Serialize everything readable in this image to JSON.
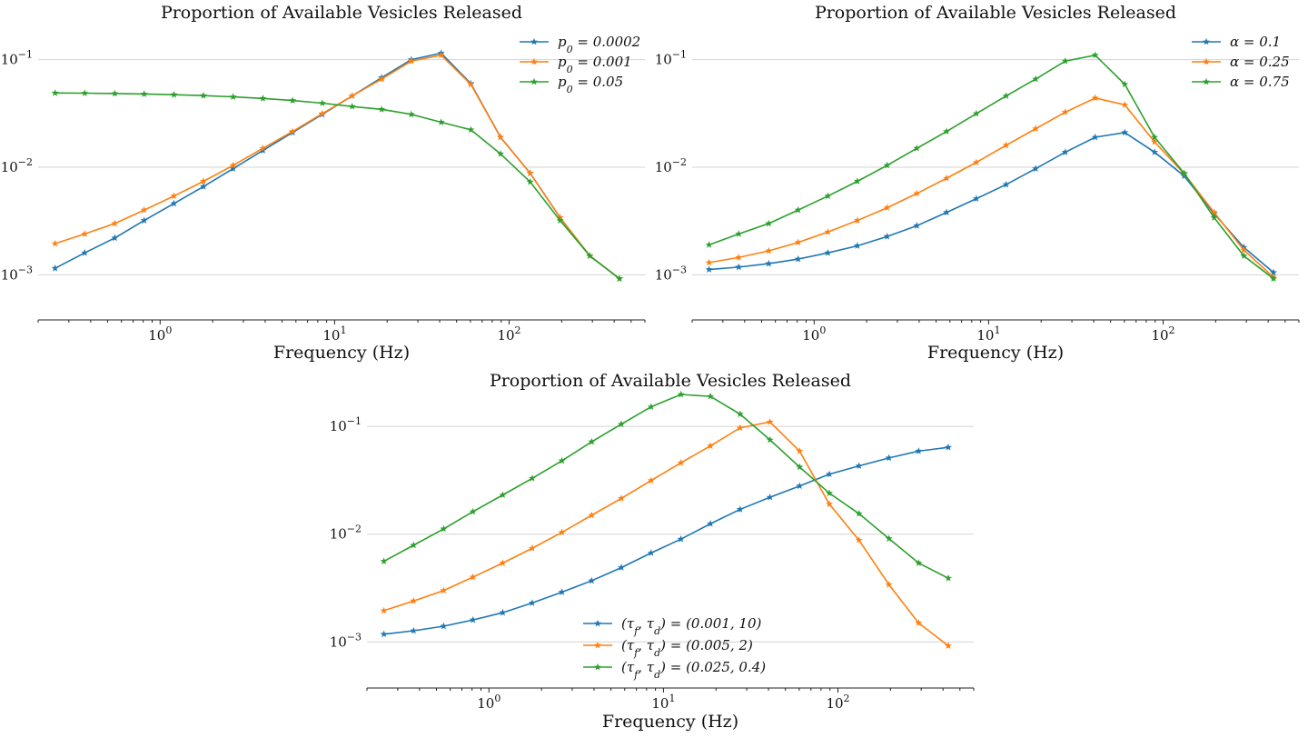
{
  "chart_data": [
    {
      "type": "line",
      "title": "Proportion of Available Vesicles Released",
      "xlabel": "Frequency (Hz)",
      "ylabel": "",
      "xscale": "log",
      "yscale": "log",
      "xlim": [
        0.2,
        600
      ],
      "ylim": [
        0.0005,
        0.2
      ],
      "grid": "y-major",
      "legend": "top-right",
      "x": [
        0.25,
        0.37,
        0.55,
        0.81,
        1.2,
        1.77,
        2.62,
        3.88,
        5.74,
        8.5,
        12.6,
        18.6,
        27.5,
        40.8,
        60.3,
        89.3,
        132,
        196,
        290,
        429
      ],
      "series": [
        {
          "name": "p_0 = 0.0002",
          "color": "#1f77b4",
          "values": [
            0.00115,
            0.0016,
            0.0022,
            0.0032,
            0.0046,
            0.0066,
            0.0097,
            0.0143,
            0.021,
            0.031,
            0.046,
            0.068,
            0.1,
            0.115,
            0.06,
            0.019,
            0.0088,
            0.0034,
            0.0015,
            0.00092
          ]
        },
        {
          "name": "p_0 = 0.001",
          "color": "#ff7f0e",
          "values": [
            0.00195,
            0.0024,
            0.003,
            0.004,
            0.0054,
            0.0074,
            0.0104,
            0.015,
            0.0215,
            0.0315,
            0.046,
            0.066,
            0.097,
            0.11,
            0.059,
            0.019,
            0.0088,
            0.0034,
            0.0015,
            0.00092
          ]
        },
        {
          "name": "p_0 = 0.05",
          "color": "#2ca02c",
          "values": [
            0.049,
            0.0488,
            0.0484,
            0.0479,
            0.0472,
            0.0463,
            0.0451,
            0.0436,
            0.0417,
            0.0394,
            0.0367,
            0.0345,
            0.031,
            0.0262,
            0.0223,
            0.0133,
            0.0073,
            0.0032,
            0.0015,
            0.00092
          ]
        }
      ]
    },
    {
      "type": "line",
      "title": "Proportion of Available Vesicles Released",
      "xlabel": "Frequency (Hz)",
      "ylabel": "",
      "xscale": "log",
      "yscale": "log",
      "xlim": [
        0.2,
        600
      ],
      "ylim": [
        0.0005,
        0.2
      ],
      "grid": "y-major",
      "legend": "top-right",
      "x": [
        0.25,
        0.37,
        0.55,
        0.81,
        1.2,
        1.77,
        2.62,
        3.88,
        5.74,
        8.5,
        12.6,
        18.6,
        27.5,
        40.8,
        60.3,
        89.3,
        132,
        196,
        290,
        429
      ],
      "series": [
        {
          "name": "α = 0.1",
          "color": "#1f77b4",
          "values": [
            0.00112,
            0.00118,
            0.00127,
            0.0014,
            0.0016,
            0.00186,
            0.00227,
            0.00286,
            0.0038,
            0.0051,
            0.0069,
            0.0097,
            0.0138,
            0.019,
            0.021,
            0.0138,
            0.0083,
            0.0037,
            0.0018,
            0.00105
          ]
        },
        {
          "name": "α = 0.25",
          "color": "#ff7f0e",
          "values": [
            0.0013,
            0.00145,
            0.00167,
            0.002,
            0.0025,
            0.0032,
            0.0042,
            0.0057,
            0.0079,
            0.0111,
            0.016,
            0.0228,
            0.0325,
            0.044,
            0.038,
            0.0172,
            0.0087,
            0.0038,
            0.0017,
            0.00095
          ]
        },
        {
          "name": "α = 0.75",
          "color": "#2ca02c",
          "values": [
            0.0019,
            0.0024,
            0.003,
            0.004,
            0.0054,
            0.0074,
            0.0104,
            0.015,
            0.0215,
            0.0315,
            0.046,
            0.066,
            0.097,
            0.11,
            0.059,
            0.019,
            0.0088,
            0.0034,
            0.0015,
            0.00092
          ]
        }
      ]
    },
    {
      "type": "line",
      "title": "Proportion of Available Vesicles Released",
      "xlabel": "Frequency (Hz)",
      "ylabel": "",
      "xscale": "log",
      "yscale": "log",
      "xlim": [
        0.2,
        600
      ],
      "ylim": [
        0.0005,
        0.25
      ],
      "grid": "y-major",
      "legend": "lower-center",
      "x": [
        0.25,
        0.37,
        0.55,
        0.81,
        1.2,
        1.77,
        2.62,
        3.88,
        5.74,
        8.5,
        12.6,
        18.6,
        27.5,
        40.8,
        60.3,
        89.3,
        132,
        196,
        290,
        429
      ],
      "series": [
        {
          "name": "(τ_f, τ_d) = (0.001, 10)",
          "color": "#1f77b4",
          "values": [
            0.00118,
            0.00127,
            0.0014,
            0.0016,
            0.00187,
            0.0023,
            0.0029,
            0.0037,
            0.0049,
            0.0067,
            0.009,
            0.0125,
            0.017,
            0.022,
            0.028,
            0.036,
            0.043,
            0.051,
            0.059,
            0.064
          ]
        },
        {
          "name": "(τ_f, τ_d) = (0.005, 2)",
          "color": "#ff7f0e",
          "values": [
            0.00195,
            0.0024,
            0.003,
            0.004,
            0.0054,
            0.0074,
            0.0104,
            0.015,
            0.0215,
            0.0315,
            0.046,
            0.066,
            0.097,
            0.11,
            0.059,
            0.019,
            0.0088,
            0.0034,
            0.0015,
            0.00092
          ]
        },
        {
          "name": "(τ_f, τ_d) = (0.025, 0.4)",
          "color": "#2ca02c",
          "values": [
            0.0056,
            0.0079,
            0.0112,
            0.0162,
            0.0231,
            0.033,
            0.048,
            0.072,
            0.105,
            0.152,
            0.198,
            0.19,
            0.13,
            0.075,
            0.042,
            0.024,
            0.0155,
            0.0091,
            0.0054,
            0.0039
          ]
        }
      ]
    }
  ],
  "ticks": {
    "x": [
      {
        "value": 1,
        "base": "10",
        "exp": "0"
      },
      {
        "value": 10,
        "base": "10",
        "exp": "1"
      },
      {
        "value": 100,
        "base": "10",
        "exp": "2"
      }
    ],
    "y": [
      {
        "value": 0.1,
        "base": "10",
        "exp": "−1"
      },
      {
        "value": 0.01,
        "base": "10",
        "exp": "−2"
      },
      {
        "value": 0.001,
        "base": "10",
        "exp": "−3"
      }
    ]
  }
}
